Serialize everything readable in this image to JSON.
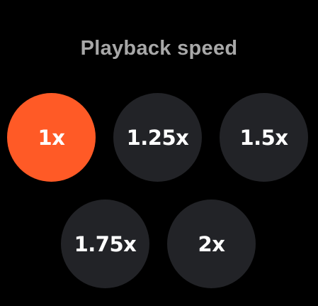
{
  "dialog": {
    "title": "Playback speed"
  },
  "speeds": [
    {
      "label": "1x",
      "selected": true
    },
    {
      "label": "1.25x",
      "selected": false
    },
    {
      "label": "1.5x",
      "selected": false
    },
    {
      "label": "1.75x",
      "selected": false
    },
    {
      "label": "2x",
      "selected": false
    }
  ],
  "colors": {
    "background": "#000000",
    "title": "#a8a8a8",
    "button": "#222327",
    "selected": "#ff5a26",
    "label": "#ffffff"
  }
}
